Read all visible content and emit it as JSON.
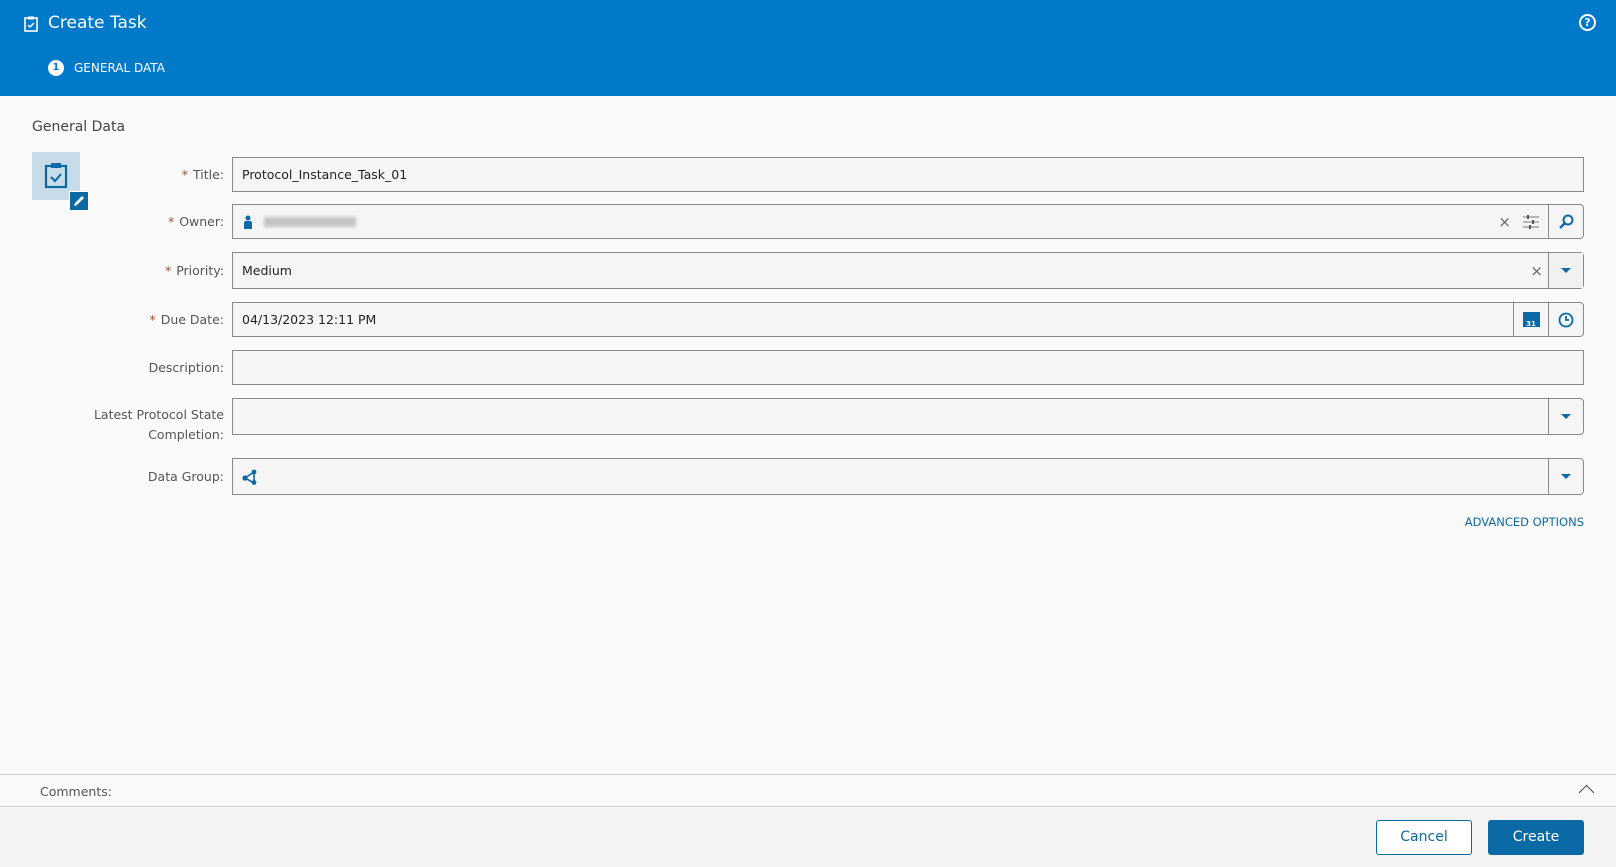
{
  "header": {
    "title": "Create Task",
    "help_icon": "help-icon",
    "steps": [
      {
        "number": "1",
        "label": "GENERAL DATA"
      }
    ],
    "color": "#0079c8"
  },
  "section_title": "General Data",
  "form": {
    "title": {
      "label": "Title:",
      "value": "Protocol_Instance_Task_01",
      "required": true
    },
    "owner": {
      "label": "Owner:",
      "value": "(blurred)",
      "required": true
    },
    "priority": {
      "label": "Priority:",
      "value": "Medium",
      "required": true
    },
    "due_date": {
      "label": "Due Date:",
      "value": "04/13/2023 12:11 PM",
      "required": true
    },
    "description": {
      "label": "Description:",
      "value": ""
    },
    "latest_protocol": {
      "label": "Latest Protocol State Completion:",
      "value": ""
    },
    "data_group": {
      "label": "Data Group:",
      "value": ""
    },
    "required_mark": "*",
    "calendar_day": "31"
  },
  "advanced_options": "ADVANCED OPTIONS",
  "comments_label": "Comments:",
  "footer": {
    "cancel": "Cancel",
    "create": "Create"
  },
  "accent": "#0b6aa6"
}
